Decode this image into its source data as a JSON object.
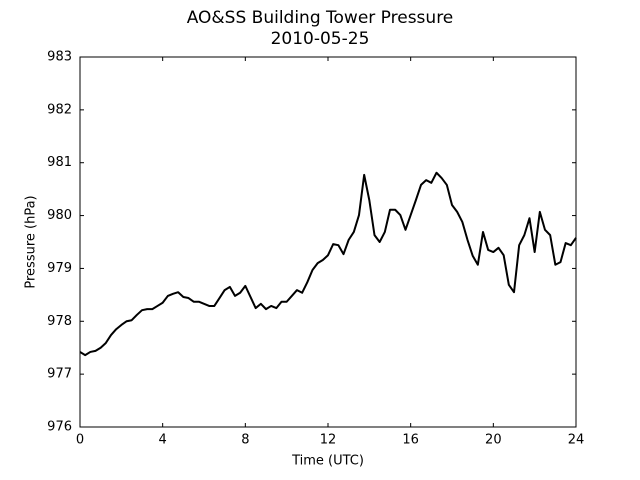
{
  "chart_data": {
    "type": "line",
    "title": "AO&SS Building Tower Pressure",
    "subtitle": "2010-05-25",
    "x_label": "Time (UTC)",
    "y_label": "Pressure (hPa)",
    "x": [
      0,
      0.25,
      0.5,
      0.75,
      1,
      1.25,
      1.5,
      1.75,
      2,
      2.25,
      2.5,
      2.75,
      3,
      3.25,
      3.5,
      3.75,
      4,
      4.25,
      4.5,
      4.75,
      5,
      5.25,
      5.5,
      5.75,
      6,
      6.25,
      6.5,
      6.75,
      7,
      7.25,
      7.5,
      7.75,
      8,
      8.25,
      8.5,
      8.75,
      9,
      9.25,
      9.5,
      9.75,
      10,
      10.25,
      10.5,
      10.75,
      11,
      11.25,
      11.5,
      11.75,
      12,
      12.25,
      12.5,
      12.75,
      13,
      13.25,
      13.5,
      13.75,
      14,
      14.25,
      14.5,
      14.75,
      15,
      15.25,
      15.5,
      15.75,
      16,
      16.25,
      16.5,
      16.75,
      17,
      17.25,
      17.5,
      17.75,
      18,
      18.25,
      18.5,
      18.75,
      19,
      19.25,
      19.5,
      19.75,
      20,
      20.25,
      20.5,
      20.75,
      21,
      21.25,
      21.5,
      21.75,
      22,
      22.25,
      22.5,
      22.75,
      23,
      23.25,
      23.5,
      23.75,
      24
    ],
    "series": [
      {
        "name": "Pressure",
        "color": "#000000",
        "values": [
          977.42,
          977.36,
          977.42,
          977.44,
          977.5,
          977.59,
          977.74,
          977.85,
          977.93,
          978.0,
          978.02,
          978.12,
          978.21,
          978.23,
          978.23,
          978.29,
          978.35,
          978.48,
          978.52,
          978.55,
          978.46,
          978.44,
          978.37,
          978.37,
          978.33,
          978.29,
          978.29,
          978.44,
          978.59,
          978.65,
          978.48,
          978.54,
          978.67,
          978.46,
          978.25,
          978.33,
          978.23,
          978.29,
          978.25,
          978.37,
          978.37,
          978.48,
          978.59,
          978.54,
          978.74,
          978.97,
          979.1,
          979.16,
          979.25,
          979.46,
          979.44,
          979.27,
          979.54,
          979.69,
          980.01,
          980.77,
          980.29,
          979.63,
          979.5,
          979.69,
          980.11,
          980.11,
          980.01,
          979.73,
          980.01,
          980.29,
          980.58,
          980.67,
          980.62,
          980.81,
          980.71,
          980.58,
          980.2,
          980.07,
          979.88,
          979.54,
          979.24,
          979.07,
          979.69,
          979.35,
          979.31,
          979.39,
          979.25,
          978.69,
          978.55,
          979.44,
          979.63,
          979.95,
          979.31,
          980.07,
          979.73,
          979.63,
          979.07,
          979.12,
          979.48,
          979.44,
          979.58
        ]
      }
    ],
    "xlim": [
      0,
      24
    ],
    "xticks": [
      0,
      4,
      8,
      12,
      16,
      20,
      24
    ],
    "ylim": [
      976,
      983
    ],
    "yticks": [
      976,
      977,
      978,
      979,
      980,
      981,
      982,
      983
    ]
  }
}
